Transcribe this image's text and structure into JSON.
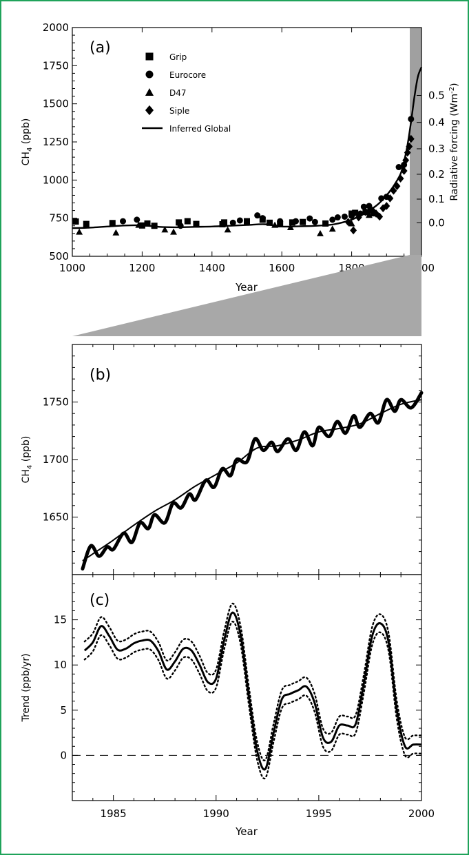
{
  "chart_data": [
    {
      "id": "a",
      "panel_label": "(a)",
      "type": "scatter",
      "xlabel": "Year",
      "ylabel": "CH",
      "ylabel_sub": "4",
      "ylabel_unit": " (ppb)",
      "y2label": "Radiative forcing (Wm",
      "y2label_sup": "-2",
      "y2label_end": ")",
      "xlim": [
        1000,
        2000
      ],
      "ylim": [
        500,
        2000
      ],
      "y2_ticks": [
        {
          "v": 0.0,
          "label": "0.0",
          "ppb": 720
        },
        {
          "v": 0.1,
          "label": "0.1",
          "ppb": 875
        },
        {
          "v": 0.2,
          "label": "0.2",
          "ppb": 1038
        },
        {
          "v": 0.3,
          "label": "0.3",
          "ppb": 1205
        },
        {
          "v": 0.4,
          "label": "0.4",
          "ppb": 1378
        },
        {
          "v": 0.5,
          "label": "0.5",
          "ppb": 1555
        }
      ],
      "x_ticks": [
        1000,
        1200,
        1400,
        1600,
        1800,
        2000
      ],
      "y_ticks": [
        500,
        750,
        1000,
        1250,
        1500,
        1750,
        2000
      ],
      "legend_position": "top-left",
      "series": [
        {
          "name": "Grip",
          "marker": "square",
          "x": [
            1010,
            1040,
            1115,
            1200,
            1215,
            1235,
            1305,
            1330,
            1355,
            1430,
            1435,
            1500,
            1545,
            1565,
            1595,
            1630,
            1660,
            1725,
            1800,
            1810,
            1840,
            1855
          ],
          "y": [
            728,
            712,
            718,
            702,
            715,
            700,
            722,
            730,
            712,
            710,
            722,
            730,
            740,
            720,
            710,
            722,
            725,
            715,
            780,
            785,
            790,
            800
          ]
        },
        {
          "name": "Eurocore",
          "marker": "circle",
          "x": [
            1145,
            1185,
            1310,
            1460,
            1480,
            1530,
            1545,
            1595,
            1640,
            1680,
            1695,
            1745,
            1760,
            1780,
            1800,
            1825,
            1835,
            1850,
            1885,
            1900,
            1935,
            1950,
            1970
          ],
          "y": [
            730,
            740,
            700,
            720,
            735,
            768,
            750,
            730,
            730,
            748,
            725,
            740,
            755,
            760,
            765,
            780,
            825,
            830,
            880,
            890,
            1085,
            1100,
            1400
          ]
        },
        {
          "name": "D47",
          "marker": "triangle",
          "x": [
            1020,
            1125,
            1190,
            1265,
            1290,
            1445,
            1580,
            1625,
            1710,
            1745,
            1800,
            1850,
            1860
          ],
          "y": [
            660,
            655,
            705,
            675,
            660,
            675,
            705,
            690,
            650,
            680,
            715,
            770,
            780
          ]
        },
        {
          "name": "Siple",
          "marker": "diamond",
          "x": [
            1790,
            1805,
            1820,
            1840,
            1860,
            1870,
            1880,
            1890,
            1900,
            1910,
            1920,
            1930,
            1940,
            1950,
            1955,
            1960,
            1965,
            1970
          ],
          "y": [
            725,
            670,
            755,
            790,
            800,
            780,
            760,
            815,
            830,
            880,
            930,
            960,
            1010,
            1060,
            1130,
            1180,
            1220,
            1270
          ]
        },
        {
          "name": "Inferred Global",
          "marker": "line",
          "x": [
            1000,
            1050,
            1100,
            1150,
            1200,
            1250,
            1300,
            1350,
            1400,
            1450,
            1500,
            1550,
            1600,
            1650,
            1700,
            1750,
            1800,
            1825,
            1850,
            1875,
            1900,
            1920,
            1940,
            1950,
            1960,
            1970,
            1980,
            1990,
            2000
          ],
          "y": [
            685,
            688,
            695,
            702,
            703,
            693,
            690,
            693,
            695,
            700,
            705,
            710,
            695,
            697,
            700,
            710,
            740,
            770,
            800,
            840,
            900,
            960,
            1040,
            1120,
            1230,
            1380,
            1550,
            1680,
            1740
          ]
        }
      ]
    },
    {
      "id": "b",
      "panel_label": "(b)",
      "type": "line",
      "ylabel": "CH",
      "ylabel_sub": "4",
      "ylabel_unit": " (ppb)",
      "xlim": [
        1983,
        2000
      ],
      "ylim": [
        1600,
        1800
      ],
      "y_ticks": [
        1650,
        1700,
        1750
      ],
      "series": [
        {
          "name": "",
          "style": "observed",
          "x": [
            1983.5,
            1983.9,
            1984.3,
            1984.7,
            1985.0,
            1985.5,
            1985.9,
            1986.3,
            1986.7,
            1987.0,
            1987.5,
            1987.9,
            1988.3,
            1988.7,
            1989.0,
            1989.5,
            1989.9,
            1990.3,
            1990.7,
            1991.0,
            1991.5,
            1991.9,
            1992.3,
            1992.7,
            1993.0,
            1993.5,
            1993.9,
            1994.3,
            1994.7,
            1995.0,
            1995.5,
            1995.9,
            1996.3,
            1996.7,
            1997.0,
            1997.5,
            1997.9,
            1998.3,
            1998.7,
            1999.0,
            1999.5,
            2000.0
          ],
          "y": [
            1605,
            1625,
            1616,
            1624,
            1622,
            1636,
            1628,
            1645,
            1640,
            1652,
            1645,
            1662,
            1658,
            1670,
            1665,
            1682,
            1676,
            1692,
            1686,
            1700,
            1698,
            1718,
            1708,
            1715,
            1707,
            1718,
            1708,
            1724,
            1712,
            1728,
            1720,
            1733,
            1723,
            1738,
            1728,
            1740,
            1732,
            1752,
            1742,
            1752,
            1745,
            1758
          ]
        },
        {
          "name": "",
          "style": "trend",
          "x": [
            1983.5,
            1984,
            1985,
            1986,
            1987,
            1988,
            1989,
            1990,
            1991,
            1992,
            1993,
            1994,
            1995,
            1996,
            1997,
            1998,
            1999,
            2000
          ],
          "y": [
            1612,
            1618,
            1630,
            1643,
            1655,
            1665,
            1677,
            1687,
            1697,
            1710,
            1712,
            1717,
            1724,
            1727,
            1731,
            1740,
            1748,
            1752
          ]
        }
      ]
    },
    {
      "id": "c",
      "panel_label": "(c)",
      "type": "line",
      "xlabel": "Year",
      "ylabel": "Trend (ppb/yr)",
      "xlim": [
        1983,
        2000
      ],
      "ylim": [
        -5,
        20
      ],
      "x_ticks": [
        1985,
        1990,
        1995,
        2000
      ],
      "y_ticks": [
        0,
        5,
        10,
        15
      ],
      "zero_line": true,
      "series": [
        {
          "name": "",
          "style": "solid",
          "x": [
            1983.6,
            1984.0,
            1984.4,
            1984.8,
            1985.2,
            1985.6,
            1986.0,
            1986.4,
            1986.8,
            1987.2,
            1987.6,
            1988.0,
            1988.4,
            1988.8,
            1989.2,
            1989.6,
            1990.0,
            1990.4,
            1990.8,
            1991.2,
            1991.6,
            1992.0,
            1992.4,
            1992.8,
            1993.2,
            1993.6,
            1994.0,
            1994.4,
            1994.8,
            1995.2,
            1995.6,
            1996.0,
            1996.4,
            1996.8,
            1997.2,
            1997.6,
            1998.0,
            1998.4,
            1998.8,
            1999.2,
            1999.6,
            2000.0
          ],
          "y": [
            11.6,
            12.5,
            14.3,
            13.2,
            11.7,
            11.8,
            12.4,
            12.7,
            12.7,
            11.5,
            9.5,
            10.4,
            11.8,
            11.6,
            10.0,
            8.1,
            8.5,
            12.8,
            15.8,
            13.2,
            6.5,
            0.5,
            -1.5,
            2.5,
            6.2,
            6.8,
            7.2,
            7.6,
            5.8,
            2.0,
            1.5,
            3.3,
            3.3,
            3.5,
            8.0,
            13.2,
            14.6,
            12.5,
            5.0,
            1.0,
            1.2,
            1.2
          ]
        },
        {
          "name": "",
          "style": "dotted-upper",
          "x": [
            1983.6,
            1984.0,
            1984.4,
            1984.8,
            1985.2,
            1985.6,
            1986.0,
            1986.4,
            1986.8,
            1987.2,
            1987.6,
            1988.0,
            1988.4,
            1988.8,
            1989.2,
            1989.6,
            1990.0,
            1990.4,
            1990.8,
            1991.2,
            1991.6,
            1992.0,
            1992.4,
            1992.8,
            1993.2,
            1993.6,
            1994.0,
            1994.4,
            1994.8,
            1995.2,
            1995.6,
            1996.0,
            1996.4,
            1996.8,
            1997.2,
            1997.6,
            1998.0,
            1998.4,
            1998.8,
            1999.2,
            1999.6,
            2000.0
          ],
          "y": [
            12.6,
            13.5,
            15.3,
            14.2,
            12.7,
            12.8,
            13.4,
            13.7,
            13.7,
            12.5,
            10.5,
            11.4,
            12.8,
            12.6,
            11.0,
            9.1,
            9.5,
            13.8,
            16.8,
            14.2,
            7.5,
            1.5,
            -0.5,
            3.5,
            7.2,
            7.8,
            8.2,
            8.6,
            6.8,
            3.0,
            2.5,
            4.3,
            4.3,
            4.5,
            9.0,
            14.2,
            15.6,
            13.5,
            6.0,
            2.0,
            2.2,
            2.2
          ]
        },
        {
          "name": "",
          "style": "dotted-lower",
          "x": [
            1983.6,
            1984.0,
            1984.4,
            1984.8,
            1985.2,
            1985.6,
            1986.0,
            1986.4,
            1986.8,
            1987.2,
            1987.6,
            1988.0,
            1988.4,
            1988.8,
            1989.2,
            1989.6,
            1990.0,
            1990.4,
            1990.8,
            1991.2,
            1991.6,
            1992.0,
            1992.4,
            1992.8,
            1993.2,
            1993.6,
            1994.0,
            1994.4,
            1994.8,
            1995.2,
            1995.6,
            1996.0,
            1996.4,
            1996.8,
            1997.2,
            1997.6,
            1998.0,
            1998.4,
            1998.8,
            1999.2,
            1999.6,
            2000.0
          ],
          "y": [
            10.6,
            11.5,
            13.3,
            12.2,
            10.7,
            10.8,
            11.4,
            11.7,
            11.7,
            10.5,
            8.5,
            9.4,
            10.8,
            10.6,
            9.0,
            7.1,
            7.5,
            11.8,
            14.8,
            12.2,
            5.5,
            -0.5,
            -2.5,
            1.5,
            5.2,
            5.8,
            6.2,
            6.6,
            4.8,
            1.0,
            0.5,
            2.3,
            2.3,
            2.5,
            7.0,
            12.2,
            13.6,
            11.5,
            4.0,
            0.0,
            0.2,
            0.2
          ]
        }
      ]
    }
  ]
}
